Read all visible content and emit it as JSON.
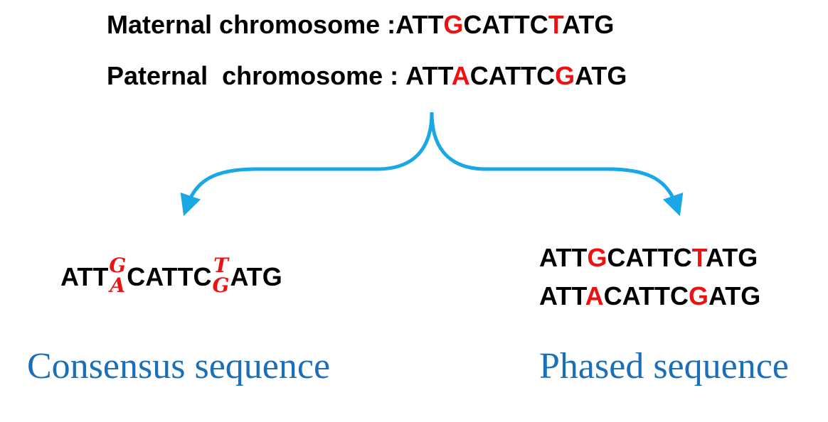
{
  "maternal": {
    "label": "Maternal chromosome : ",
    "parts": [
      "ATT",
      "G",
      "CATTC",
      "T",
      "ATG"
    ]
  },
  "paternal": {
    "label": "Paternal  chromosome : ",
    "parts": [
      "ATT",
      "A",
      "CATTC",
      "G",
      "ATG"
    ]
  },
  "consensus": {
    "parts": [
      "ATT",
      "CATTC",
      "ATG"
    ],
    "variant1": {
      "top": "G",
      "bottom": "A"
    },
    "variant2": {
      "top": "T",
      "bottom": "G"
    },
    "caption": "Consensus sequence"
  },
  "phased": {
    "line1": [
      "ATT",
      "G",
      "CATTC",
      "T",
      "ATG"
    ],
    "line2": [
      "ATT",
      "A",
      "CATTC",
      "G",
      "ATG"
    ],
    "caption": "Phased sequence"
  },
  "colors": {
    "highlight": "#ee1111",
    "arrow": "#1aa7e6",
    "caption": "#1a6fb8"
  }
}
